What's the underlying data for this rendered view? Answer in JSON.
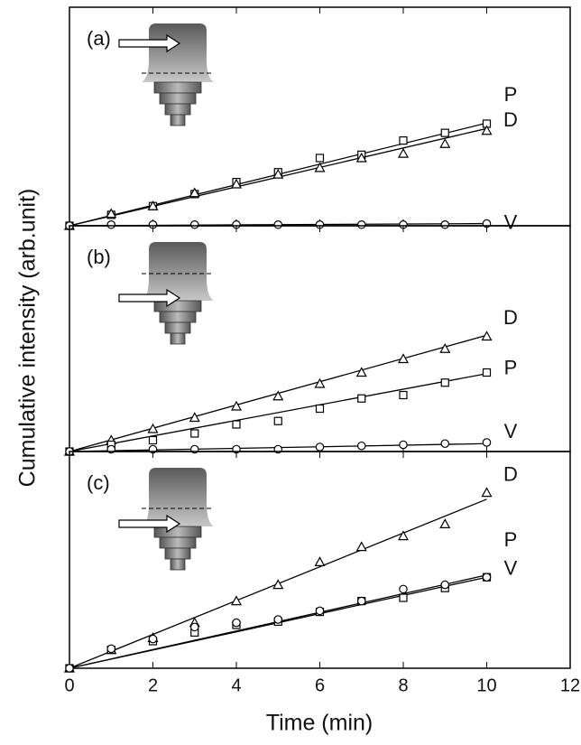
{
  "chart_data": {
    "type": "scatter",
    "xlabel": "Time (min)",
    "ylabel": "Cumulative intensity  (arb.unit)",
    "xlim": [
      0,
      12
    ],
    "xticks": [
      0,
      2,
      4,
      6,
      8,
      10,
      12
    ],
    "x": [
      0,
      1,
      2,
      3,
      4,
      5,
      6,
      7,
      8,
      9,
      10
    ],
    "color": "#000000",
    "panels": [
      {
        "label": "(a)",
        "ylim": [
          0,
          10
        ],
        "series": [
          {
            "name": "P",
            "marker": "square",
            "values": [
              0,
              0.5,
              0.9,
              1.45,
              2.0,
              2.45,
              3.1,
              3.25,
              3.9,
              4.25,
              4.67
            ],
            "fit": [
              0,
              4.7
            ]
          },
          {
            "name": "D",
            "marker": "triangle",
            "values": [
              0,
              0.55,
              0.9,
              1.5,
              1.9,
              2.35,
              2.65,
              3.1,
              3.3,
              3.75,
              4.35
            ],
            "fit": [
              0,
              4.45
            ]
          },
          {
            "name": "V",
            "marker": "circle",
            "values": [
              0,
              0.05,
              0.05,
              0.05,
              0.05,
              0.05,
              0.05,
              0.05,
              0.05,
              0.05,
              0.1
            ],
            "fit": [
              0,
              0.1
            ]
          }
        ]
      },
      {
        "label": "(b)",
        "ylim": [
          0,
          10
        ],
        "series": [
          {
            "name": "D",
            "marker": "triangle",
            "values": [
              0,
              0.5,
              1.0,
              1.5,
              2.0,
              2.45,
              3.0,
              3.5,
              4.1,
              4.55,
              5.1
            ],
            "fit": [
              0,
              5.15
            ]
          },
          {
            "name": "P",
            "marker": "square",
            "values": [
              0,
              0.3,
              0.5,
              0.8,
              1.2,
              1.35,
              1.9,
              2.35,
              2.5,
              3.05,
              3.5
            ],
            "fit": [
              0,
              3.45
            ]
          },
          {
            "name": "V",
            "marker": "circle",
            "values": [
              0,
              0.1,
              0.1,
              0.1,
              0.1,
              0.1,
              0.2,
              0.25,
              0.3,
              0.35,
              0.4
            ],
            "fit": [
              0,
              0.35
            ]
          }
        ]
      },
      {
        "label": "(c)",
        "ylim": [
          0,
          10
        ],
        "series": [
          {
            "name": "D",
            "marker": "triangle",
            "values": [
              0,
              0.85,
              1.4,
              2.1,
              3.1,
              3.85,
              4.9,
              5.6,
              6.1,
              6.65,
              8.1
            ],
            "fit": [
              0,
              7.8
            ]
          },
          {
            "name": "P",
            "marker": "square",
            "values": [
              0,
              0.85,
              1.25,
              1.65,
              2.0,
              2.15,
              2.6,
              3.1,
              3.25,
              3.7,
              4.2
            ],
            "fit": [
              0,
              4.2
            ]
          },
          {
            "name": "V",
            "marker": "circle",
            "values": [
              0,
              0.9,
              1.35,
              1.9,
              2.1,
              2.25,
              2.65,
              3.1,
              3.65,
              3.85,
              4.2
            ],
            "fit": [
              0,
              4.3
            ]
          }
        ]
      }
    ]
  }
}
